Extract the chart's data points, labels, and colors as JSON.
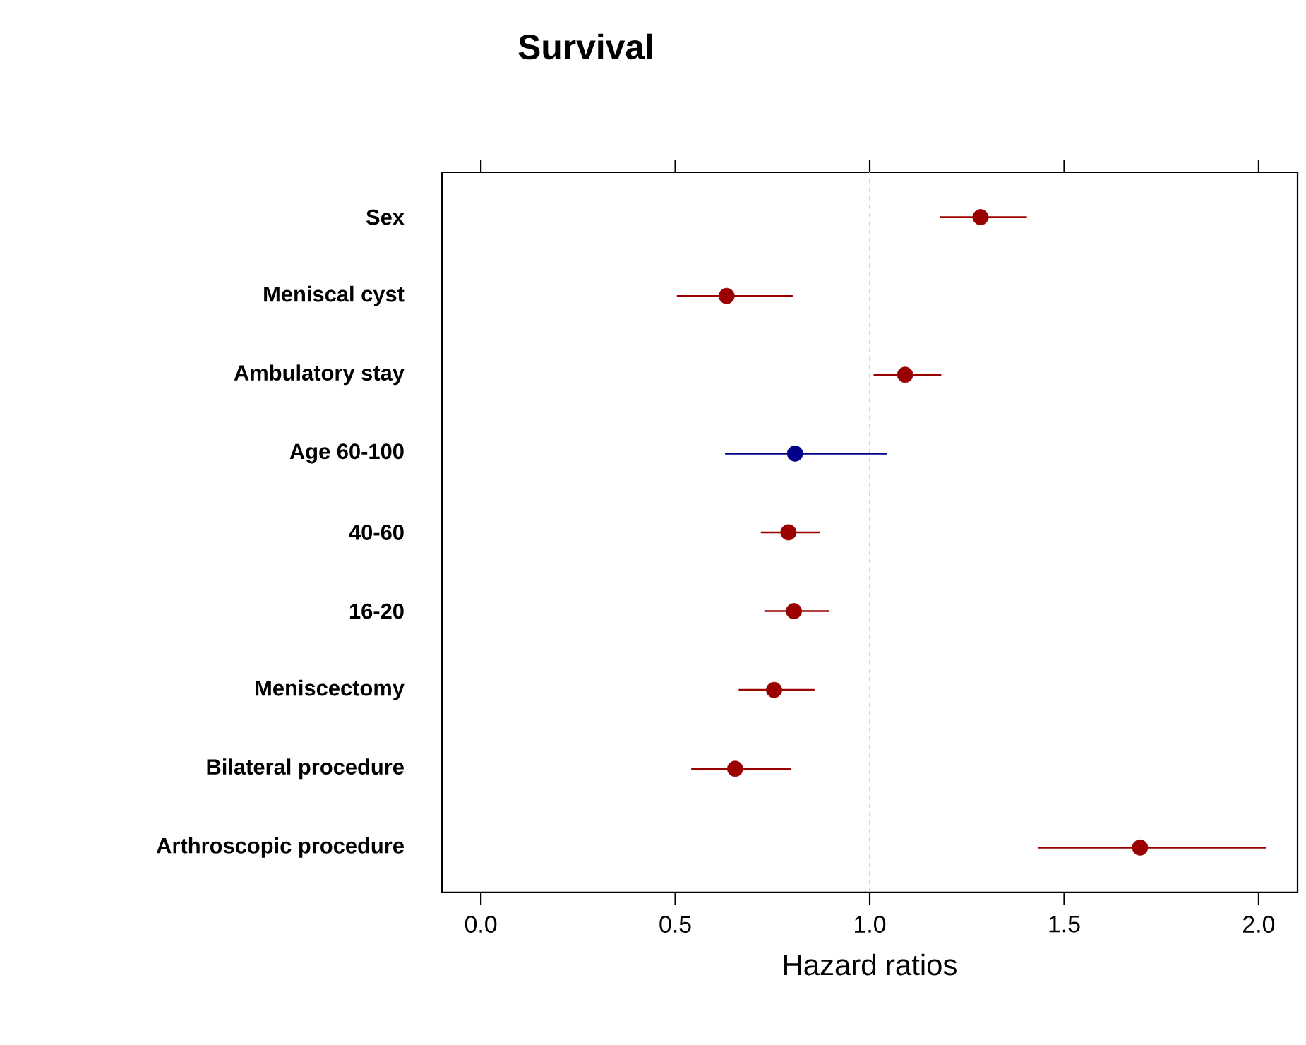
{
  "chart_data": {
    "type": "scatter",
    "orientation": "horizontal",
    "title": "Survival",
    "xlabel": "Hazard ratios",
    "categories": [
      "Sex",
      "Meniscal cyst",
      "Ambulatory stay",
      "Age 60-100",
      "40-60",
      "16-20",
      "Meniscectomy",
      "Bilateral procedure",
      "Arthroscopic procedure"
    ],
    "values": [
      1.285,
      0.632,
      1.091,
      0.808,
      0.791,
      0.805,
      0.754,
      0.654,
      1.695
    ],
    "errors": [
      [
        1.181,
        1.404
      ],
      [
        0.504,
        0.802
      ],
      [
        1.01,
        1.184
      ],
      [
        0.628,
        1.045
      ],
      [
        0.72,
        0.872
      ],
      [
        0.729,
        0.895
      ],
      [
        0.663,
        0.858
      ],
      [
        0.541,
        0.798
      ],
      [
        1.433,
        2.02
      ]
    ],
    "colors": [
      "#9b0000",
      "#9b0000",
      "#9b0000",
      "#00008b",
      "#9b0000",
      "#9b0000",
      "#9b0000",
      "#9b0000",
      "#9b0000"
    ],
    "marker": "circle",
    "xlim": [
      -0.1,
      2.1
    ],
    "xticks": [
      {
        "value": 0,
        "label": "0.0"
      },
      {
        "value": 0.5,
        "label": "0.5"
      },
      {
        "value": 1,
        "label": "1.0"
      },
      {
        "value": 1.5,
        "label": "1.5"
      },
      {
        "value": 2,
        "label": "2.0"
      }
    ],
    "ref_lines": [
      {
        "axis": "x",
        "value": 1,
        "color": "#c8c8c8",
        "line_style": "dashed"
      }
    ]
  }
}
